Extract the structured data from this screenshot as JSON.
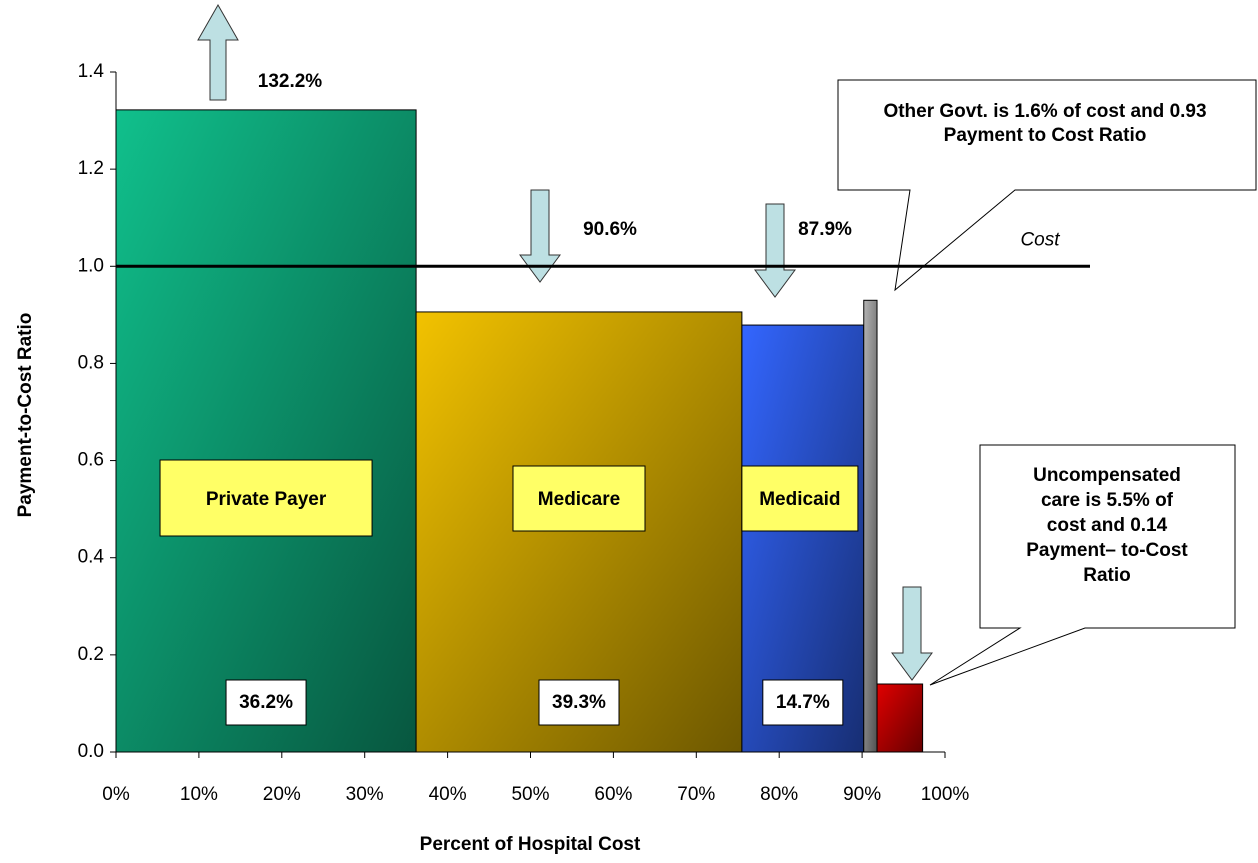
{
  "chart_data": {
    "type": "variable-width-bar",
    "xlabel": "Percent of Hospital Cost",
    "ylabel": "Payment-to-Cost Ratio",
    "categories": [
      "Private Payer",
      "Medicare",
      "Medicaid",
      null,
      null
    ],
    "values": [
      1.322,
      0.906,
      0.879,
      0.93,
      0.14
    ],
    "value_labels": [
      "132.2%",
      "90.6%",
      "87.9%",
      null,
      null
    ],
    "widths": [
      36.2,
      39.3,
      14.7,
      1.6,
      5.5
    ],
    "width_labels": [
      "36.2%",
      "39.3%",
      "14.7%",
      null,
      null
    ],
    "colors": [
      "#10c08c",
      "#f2c200",
      "#3366ff",
      "#b4b4b4",
      "#e00000"
    ],
    "xlim": [
      0,
      100
    ],
    "xticks": [
      {
        "value": 0,
        "label": "0%"
      },
      {
        "value": 10,
        "label": "10%"
      },
      {
        "value": 20,
        "label": "20%"
      },
      {
        "value": 30,
        "label": "30%"
      },
      {
        "value": 40,
        "label": "40%"
      },
      {
        "value": 50,
        "label": "50%"
      },
      {
        "value": 60,
        "label": "60%"
      },
      {
        "value": 70,
        "label": "70%"
      },
      {
        "value": 80,
        "label": "80%"
      },
      {
        "value": 90,
        "label": "90%"
      },
      {
        "value": 100,
        "label": "100%"
      }
    ],
    "ylim": [
      0,
      1.4
    ],
    "yticks": [
      {
        "value": 0,
        "label": "0.0"
      },
      0.2,
      0.4,
      0.6,
      0.8,
      {
        "value": 1,
        "label": "1.0"
      },
      1.2,
      1.4
    ],
    "reference_line": {
      "value": 1,
      "label": "Cost"
    },
    "annotations": [
      [
        "Other Govt. is 1.6% of cost and 0.93",
        "Payment to Cost Ratio"
      ],
      [
        "Uncompensated",
        "care is 5.5% of",
        "cost and 0.14",
        "Payment– to-Cost",
        "Ratio"
      ]
    ]
  }
}
